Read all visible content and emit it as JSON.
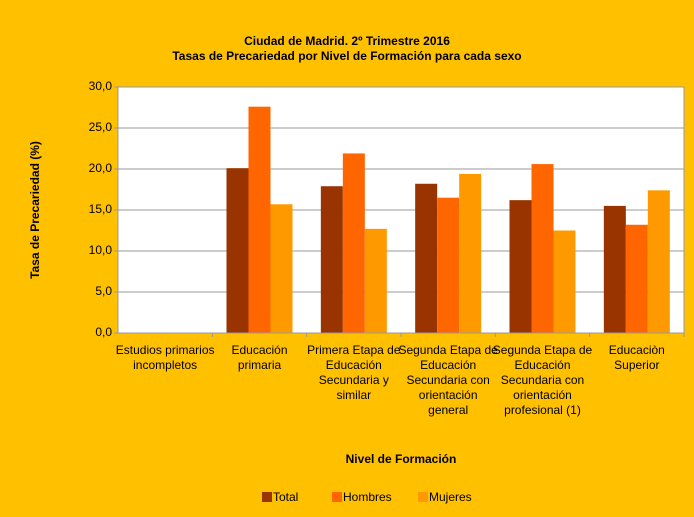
{
  "chart_data": {
    "type": "bar",
    "title": "Ciudad de Madrid. 2º Trimestre 2016",
    "subtitle": "Tasas de Precariedad por Nivel de Formación para cada sexo",
    "x_label": "Nivel de Formación",
    "y_label": "Tasa de Precariedad (%)",
    "categories": [
      "Estudios primarios incompletos",
      "Educación primaria",
      "Primera Etapa de Educación Secundaria y similar",
      "Segunda Etapa de Educación Secundaria con orientación general",
      "Segunda Etapa de Educación Secundaria con orientación profesional (1)",
      "Educaciòn Superior"
    ],
    "series": [
      {
        "name": "Total",
        "color": "#993300",
        "values": [
          null,
          20.1,
          17.9,
          18.2,
          16.2,
          15.5
        ]
      },
      {
        "name": "Hombres",
        "color": "#ff6600",
        "values": [
          null,
          27.6,
          21.9,
          16.5,
          20.6,
          13.2
        ]
      },
      {
        "name": "Mujeres",
        "color": "#ff9900",
        "values": [
          null,
          15.7,
          12.7,
          19.4,
          12.5,
          17.4
        ]
      }
    ],
    "ylim": [
      0,
      30
    ],
    "yticks": [
      {
        "value": 0,
        "label": "0,0"
      },
      {
        "value": 5,
        "label": "5,0"
      },
      {
        "value": 10,
        "label": "10,0"
      },
      {
        "value": 15,
        "label": "15,0"
      },
      {
        "value": 20,
        "label": "20,0"
      },
      {
        "value": 25,
        "label": "25,0"
      },
      {
        "value": 30,
        "label": "30,0"
      }
    ],
    "grid": true,
    "legend": "bottom"
  }
}
